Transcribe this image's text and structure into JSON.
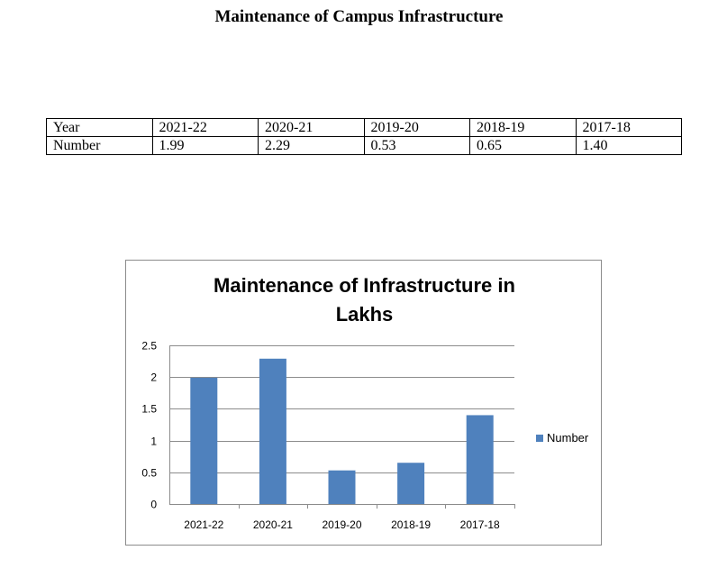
{
  "document": {
    "title": "Maintenance of Campus Infrastructure"
  },
  "table": {
    "rows": [
      [
        "Year",
        "2021-22",
        "2020-21",
        "2019-20",
        "2018-19",
        "2017-18"
      ],
      [
        "Number",
        "1.99",
        "2.29",
        "0.53",
        "0.65",
        "1.40"
      ]
    ]
  },
  "chart_data": {
    "type": "bar",
    "title_lines": [
      "Maintenance of Infrastructure in",
      "Lakhs"
    ],
    "categories": [
      "2021-22",
      "2020-21",
      "2019-20",
      "2018-19",
      "2017-18"
    ],
    "series": [
      {
        "name": "Number",
        "values": [
          1.99,
          2.29,
          0.53,
          0.65,
          1.4
        ],
        "color": "#4F81BD"
      }
    ],
    "ylim": [
      0,
      2.5
    ],
    "yticks": [
      "0",
      "0.5",
      "1",
      "1.5",
      "2",
      "2.5"
    ],
    "grid": true,
    "legend_position": "right"
  }
}
